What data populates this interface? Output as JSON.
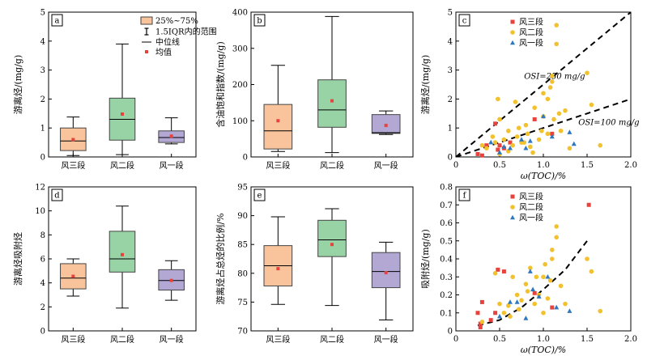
{
  "chart_data": [
    {
      "panel": "a",
      "type": "box",
      "ylabel": "游离烃/(mg/g)",
      "ylim": [
        0,
        5
      ],
      "yticks": [
        0,
        1,
        2,
        3,
        4,
        5
      ],
      "categories": [
        "风三段",
        "风二段",
        "风一段"
      ],
      "colors": [
        "#f9c49c",
        "#98d3a6",
        "#b3a8d4"
      ],
      "boxes": [
        {
          "min": 0.05,
          "q1": 0.22,
          "median": 0.55,
          "q3": 1.0,
          "max": 1.38,
          "mean": 0.6
        },
        {
          "min": 0.08,
          "q1": 0.58,
          "median": 1.3,
          "q3": 2.03,
          "max": 3.9,
          "mean": 1.48
        },
        {
          "min": 0.45,
          "q1": 0.5,
          "median": 0.67,
          "q3": 0.9,
          "max": 1.35,
          "mean": 0.72
        }
      ],
      "legend": {
        "items": [
          "25%~75%",
          "1.5IQR内的范围",
          "中位线",
          "均值"
        ],
        "position": "top-right"
      }
    },
    {
      "panel": "b",
      "type": "box",
      "ylabel": "含油饱和指数/(mg/g)",
      "ylim": [
        0,
        400
      ],
      "yticks": [
        0,
        100,
        200,
        300,
        400
      ],
      "categories": [
        "风三段",
        "风二段",
        "风一段"
      ],
      "colors": [
        "#f9c49c",
        "#98d3a6",
        "#b3a8d4"
      ],
      "boxes": [
        {
          "min": 15,
          "q1": 22,
          "median": 72,
          "q3": 145,
          "max": 253,
          "mean": 100
        },
        {
          "min": 12,
          "q1": 82,
          "median": 130,
          "q3": 213,
          "max": 388,
          "mean": 155
        },
        {
          "min": 62,
          "q1": 65,
          "median": 67,
          "q3": 117,
          "max": 127,
          "mean": 87
        }
      ]
    },
    {
      "panel": "c",
      "type": "scatter",
      "xlabel": "ω(TOC)/%",
      "ylabel": "游离烃/(mg/g)",
      "xlim": [
        0,
        2
      ],
      "ylim": [
        0,
        5
      ],
      "xticks": [
        "0",
        "0.5",
        "1.0",
        "1.5",
        "2.0"
      ],
      "yticks": [
        0,
        1,
        2,
        3,
        4,
        5
      ],
      "legend": {
        "items": [
          "风三段",
          "风二段",
          "风一段"
        ],
        "position": "top-left"
      },
      "series": [
        {
          "name": "风三段",
          "marker": "square",
          "color": "#e8423c",
          "x": [
            0.25,
            0.3,
            0.35,
            0.45,
            0.48,
            0.5,
            0.55,
            0.9,
            1.1,
            0.62
          ],
          "y": [
            0.1,
            0.05,
            0.4,
            1.15,
            0.25,
            0.4,
            0.3,
            1.3,
            0.8,
            0.5
          ]
        },
        {
          "name": "风二段",
          "marker": "circle",
          "color": "#f2c12e",
          "x": [
            0.3,
            0.35,
            0.45,
            0.48,
            0.5,
            0.55,
            0.6,
            0.65,
            0.7,
            0.72,
            0.75,
            0.8,
            0.82,
            0.85,
            0.9,
            0.95,
            1.0,
            1.0,
            1.05,
            1.05,
            1.1,
            1.1,
            1.12,
            1.15,
            1.15,
            1.18,
            1.2,
            1.25,
            1.3,
            1.5,
            1.55,
            1.65,
            0.6,
            0.68,
            0.78,
            0.88,
            0.98,
            1.08,
            0.42,
            0.5
          ],
          "y": [
            0.4,
            0.3,
            0.5,
            2.0,
            1.3,
            0.6,
            0.9,
            0.4,
            0.7,
            1.0,
            0.5,
            1.1,
            0.8,
            0.35,
            1.7,
            0.6,
            2.2,
            1.4,
            2.0,
            0.8,
            2.6,
            2.8,
            1.3,
            3.9,
            4.55,
            1.5,
            0.9,
            1.6,
            0.3,
            2.9,
            1.8,
            0.4,
            0.2,
            1.9,
            0.5,
            0.15,
            0.9,
            2.4,
            0.7,
            0.1
          ]
        },
        {
          "name": "风一段",
          "marker": "triangle",
          "color": "#2f78c0",
          "x": [
            0.4,
            0.5,
            0.55,
            0.62,
            0.75,
            0.8,
            0.85,
            1.0,
            1.1,
            1.3,
            1.35
          ],
          "y": [
            0.5,
            0.15,
            0.35,
            0.3,
            0.6,
            0.3,
            0.55,
            1.4,
            0.7,
            0.85,
            0.45
          ]
        }
      ],
      "lines": [
        {
          "label": "OSI=250 mg/g",
          "slope": 2.5,
          "x": [
            0,
            2
          ]
        },
        {
          "label": "OSI=100 mg/g",
          "slope": 1.0,
          "x": [
            0,
            2
          ]
        }
      ]
    },
    {
      "panel": "d",
      "type": "box",
      "ylabel": "游离烃吸附烃",
      "ylim": [
        0,
        12
      ],
      "yticks": [
        0,
        2,
        4,
        6,
        8,
        10,
        12
      ],
      "categories": [
        "风三段",
        "风二段",
        "风一段"
      ],
      "colors": [
        "#f9c49c",
        "#98d3a6",
        "#b3a8d4"
      ],
      "boxes": [
        {
          "min": 2.9,
          "q1": 3.5,
          "median": 4.4,
          "q3": 5.6,
          "max": 6.0,
          "mean": 4.55
        },
        {
          "min": 1.9,
          "q1": 4.9,
          "median": 6.0,
          "q3": 8.3,
          "max": 10.4,
          "mean": 6.35
        },
        {
          "min": 2.55,
          "q1": 3.4,
          "median": 4.2,
          "q3": 5.1,
          "max": 5.85,
          "mean": 4.2
        }
      ]
    },
    {
      "panel": "e",
      "type": "box",
      "ylabel": "游离烃占总烃的比例/%",
      "ylim": [
        70,
        95
      ],
      "yticks": [
        70,
        75,
        80,
        85,
        90,
        95
      ],
      "categories": [
        "风三段",
        "风二段",
        "风一段"
      ],
      "colors": [
        "#f9c49c",
        "#98d3a6",
        "#b3a8d4"
      ],
      "boxes": [
        {
          "min": 74.6,
          "q1": 77.8,
          "median": 81.3,
          "q3": 84.8,
          "max": 89.8,
          "mean": 80.8
        },
        {
          "min": 74.4,
          "q1": 82.9,
          "median": 85.8,
          "q3": 89.2,
          "max": 91.2,
          "mean": 85.0
        },
        {
          "min": 71.9,
          "q1": 77.5,
          "median": 80.3,
          "q3": 83.6,
          "max": 85.4,
          "mean": 80.1
        }
      ]
    },
    {
      "panel": "f",
      "type": "scatter",
      "xlabel": "ω(TOC)/%",
      "ylabel": "吸附烃/(mg/g)",
      "xlim": [
        0,
        2
      ],
      "ylim": [
        0,
        0.8
      ],
      "xticks": [
        "0",
        "0.5",
        "1.0",
        "1.5",
        "2.0"
      ],
      "yticks": [
        "0",
        "0.1",
        "0.2",
        "0.3",
        "0.4",
        "0.5",
        "0.6",
        "0.7",
        "0.8"
      ],
      "legend": {
        "items": [
          "风三段",
          "风二段",
          "风一段"
        ],
        "position": "top-left"
      },
      "series": [
        {
          "name": "风三段",
          "marker": "square",
          "color": "#e8423c",
          "x": [
            0.25,
            0.28,
            0.3,
            0.4,
            0.45,
            0.48,
            0.55,
            0.9,
            1.1,
            1.52,
            0.28
          ],
          "y": [
            0.1,
            0.02,
            0.16,
            0.06,
            0.1,
            0.34,
            0.33,
            0.21,
            0.13,
            0.7,
            0.04
          ]
        },
        {
          "name": "风二段",
          "marker": "circle",
          "color": "#f2c12e",
          "x": [
            0.3,
            0.45,
            0.5,
            0.55,
            0.6,
            0.65,
            0.7,
            0.75,
            0.8,
            0.85,
            0.9,
            0.95,
            1.0,
            1.0,
            1.05,
            1.1,
            1.1,
            1.15,
            1.15,
            1.2,
            1.25,
            1.5,
            1.55,
            1.65,
            0.62,
            0.72,
            0.82,
            0.92,
            1.02,
            1.08
          ],
          "y": [
            0.05,
            0.32,
            0.15,
            0.1,
            0.14,
            0.3,
            0.2,
            0.17,
            0.26,
            0.35,
            0.15,
            0.2,
            0.1,
            0.3,
            0.18,
            0.4,
            0.45,
            0.52,
            0.58,
            0.25,
            0.15,
            0.4,
            0.33,
            0.11,
            0.08,
            0.12,
            0.22,
            0.3,
            0.37,
            0.28
          ]
        },
        {
          "name": "风一段",
          "marker": "triangle",
          "color": "#2f78c0",
          "x": [
            0.5,
            0.62,
            0.7,
            0.8,
            0.85,
            0.88,
            0.95,
            1.05,
            1.15,
            1.3
          ],
          "y": [
            0.08,
            0.16,
            0.16,
            0.07,
            0.33,
            0.23,
            0.19,
            0.3,
            0.13,
            0.11
          ]
        }
      ],
      "curve": {
        "x": [
          0.25,
          0.5,
          0.75,
          1.0,
          1.25,
          1.5
        ],
        "y": [
          0.03,
          0.06,
          0.13,
          0.23,
          0.34,
          0.5
        ]
      }
    }
  ]
}
